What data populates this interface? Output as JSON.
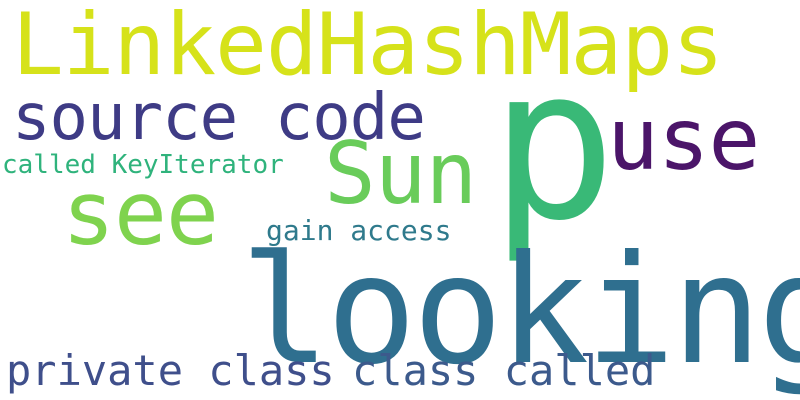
{
  "words": {
    "linkedhashmaps": {
      "text": "LinkedHashMaps",
      "color": "#d6e21a"
    },
    "source_code": {
      "text": "source code",
      "color": "#3e3b85"
    },
    "p": {
      "text": "p",
      "color": "#39b977"
    },
    "use": {
      "text": "use",
      "color": "#4b1569"
    },
    "sun": {
      "text": "Sun",
      "color": "#69cc5a"
    },
    "see": {
      "text": "see",
      "color": "#7fd34e"
    },
    "called_keyiterator": {
      "text": "called KeyIterator",
      "color": "#2fb37c"
    },
    "gain_access": {
      "text": "gain access",
      "color": "#2f7a8c"
    },
    "looking": {
      "text": "looking",
      "color": "#2f6f8f"
    },
    "private_class": {
      "text": "private class",
      "color": "#3f4f8b"
    },
    "class_called": {
      "text": "class called",
      "color": "#3c5a8c"
    }
  }
}
